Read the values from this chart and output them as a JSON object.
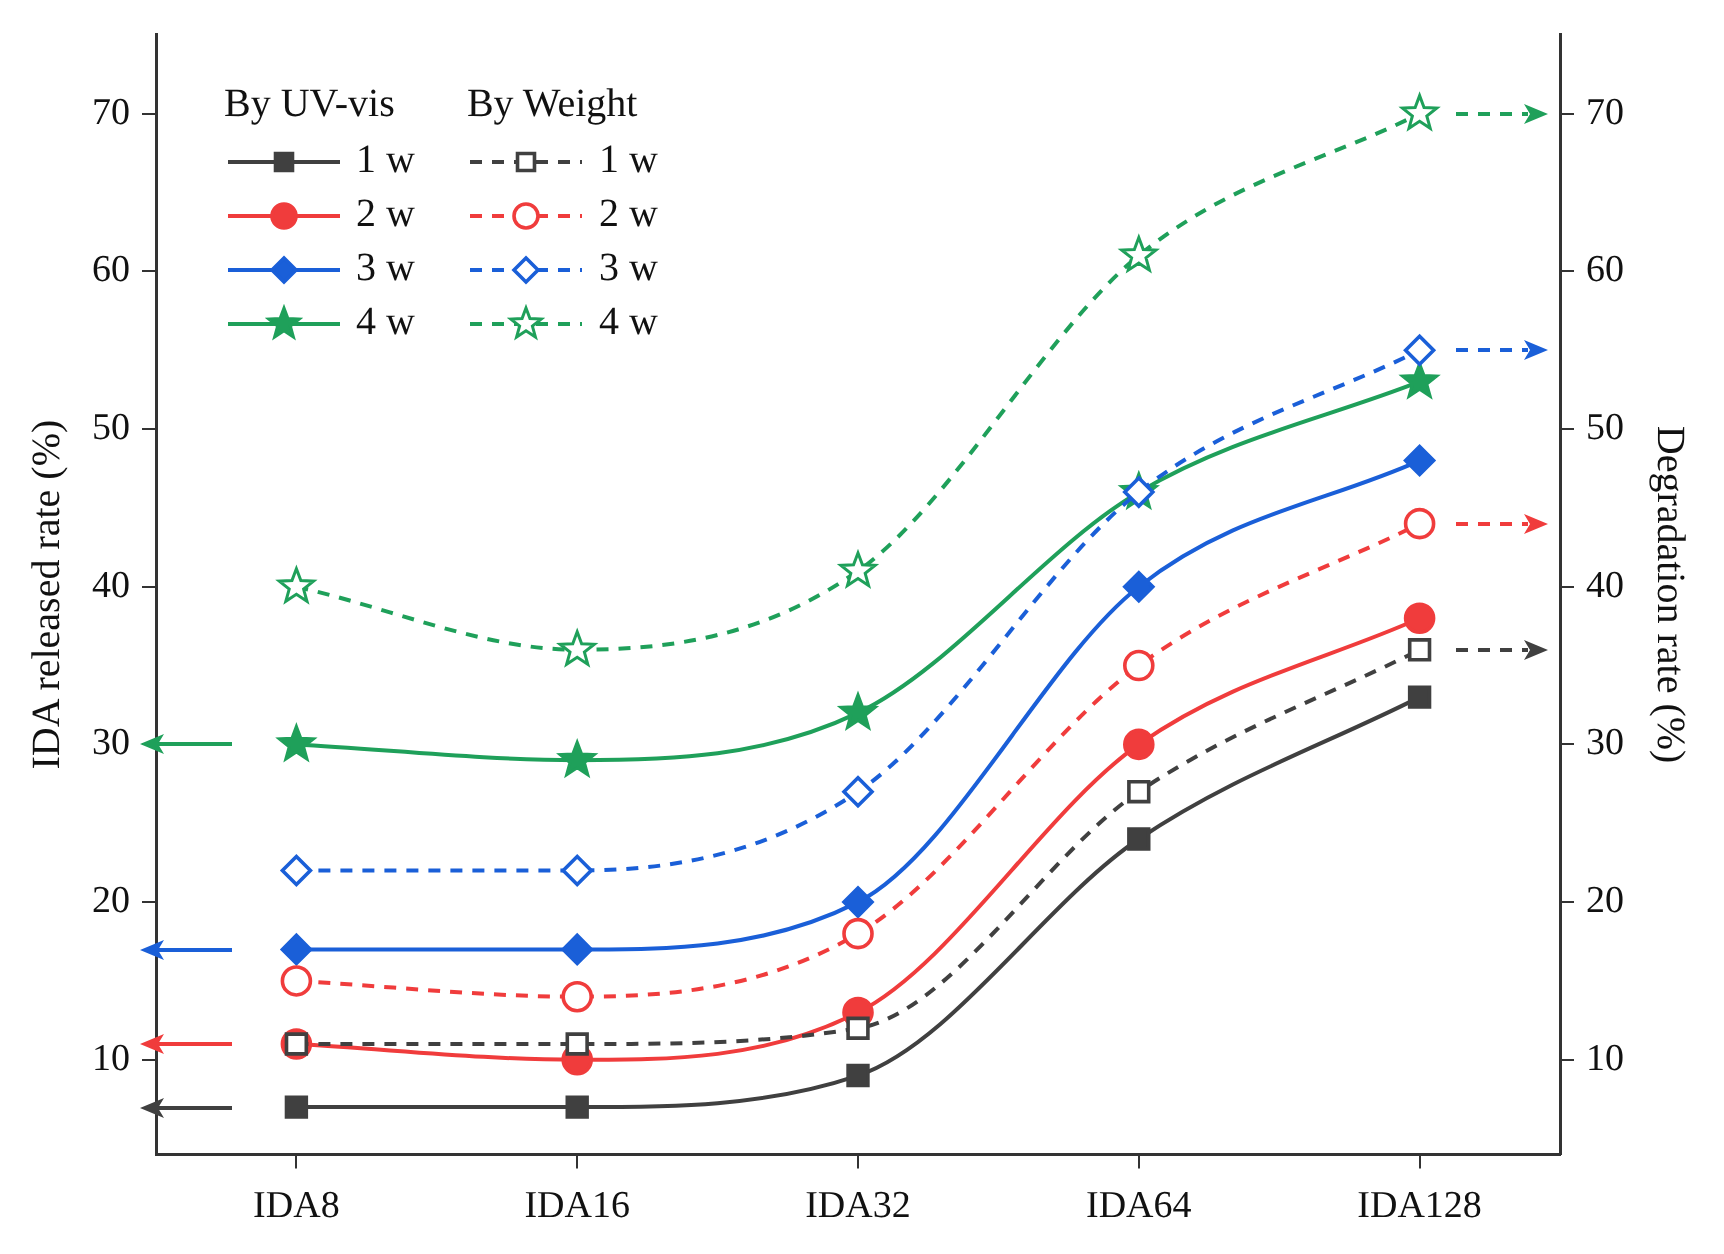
{
  "chart_data": {
    "type": "line",
    "categories": [
      "IDA8",
      "IDA16",
      "IDA32",
      "IDA64",
      "IDA128"
    ],
    "ylabel": "IDA released rate (%)",
    "y2label": "Degradation rate (%)",
    "legend_title": "By UV-vis",
    "ylim": [
      4,
      75
    ],
    "yticks": [
      10,
      20,
      30,
      40,
      50,
      60,
      70
    ],
    "y2lim": [
      4,
      75
    ],
    "y2ticks": [
      10,
      20,
      30,
      40,
      50,
      60,
      70
    ],
    "grid": false,
    "legend": "top left",
    "series": [
      {
        "name": "1 w",
        "color": "#404040",
        "marker": "square",
        "line_style": "solid",
        "axis": "y",
        "values": [
          7,
          7,
          9,
          24,
          33
        ]
      },
      {
        "name": "2 w",
        "color": "#f03c3c",
        "marker": "circle",
        "line_style": "solid",
        "axis": "y",
        "values": [
          11,
          10,
          13,
          30,
          38
        ]
      },
      {
        "name": "3 w",
        "color": "#1a5fd8",
        "marker": "diamond",
        "line_style": "solid",
        "axis": "y",
        "values": [
          17,
          17,
          20,
          40,
          48
        ]
      },
      {
        "name": "4 w",
        "color": "#1fa05a",
        "marker": "star",
        "line_style": "solid",
        "axis": "y",
        "values": [
          30,
          29,
          32,
          46,
          53
        ]
      },
      {
        "name": "1 w",
        "color": "#404040",
        "marker": "square",
        "line_style": "dashed",
        "axis": "y2",
        "values": [
          11,
          11,
          12,
          27,
          36
        ]
      },
      {
        "name": "2 w",
        "color": "#f03c3c",
        "marker": "circle",
        "line_style": "dashed",
        "axis": "y2",
        "values": [
          15,
          14,
          18,
          35,
          44
        ]
      },
      {
        "name": "3 w",
        "color": "#1a5fd8",
        "marker": "diamond",
        "line_style": "dashed",
        "axis": "y2",
        "values": [
          22,
          22,
          27,
          46,
          55
        ]
      },
      {
        "name": "4 w",
        "color": "#1fa05a",
        "marker": "star",
        "line_style": "dashed",
        "axis": "y2",
        "values": [
          40,
          36,
          41,
          61,
          70
        ]
      }
    ],
    "annotations": [
      "By Weight"
    ]
  }
}
